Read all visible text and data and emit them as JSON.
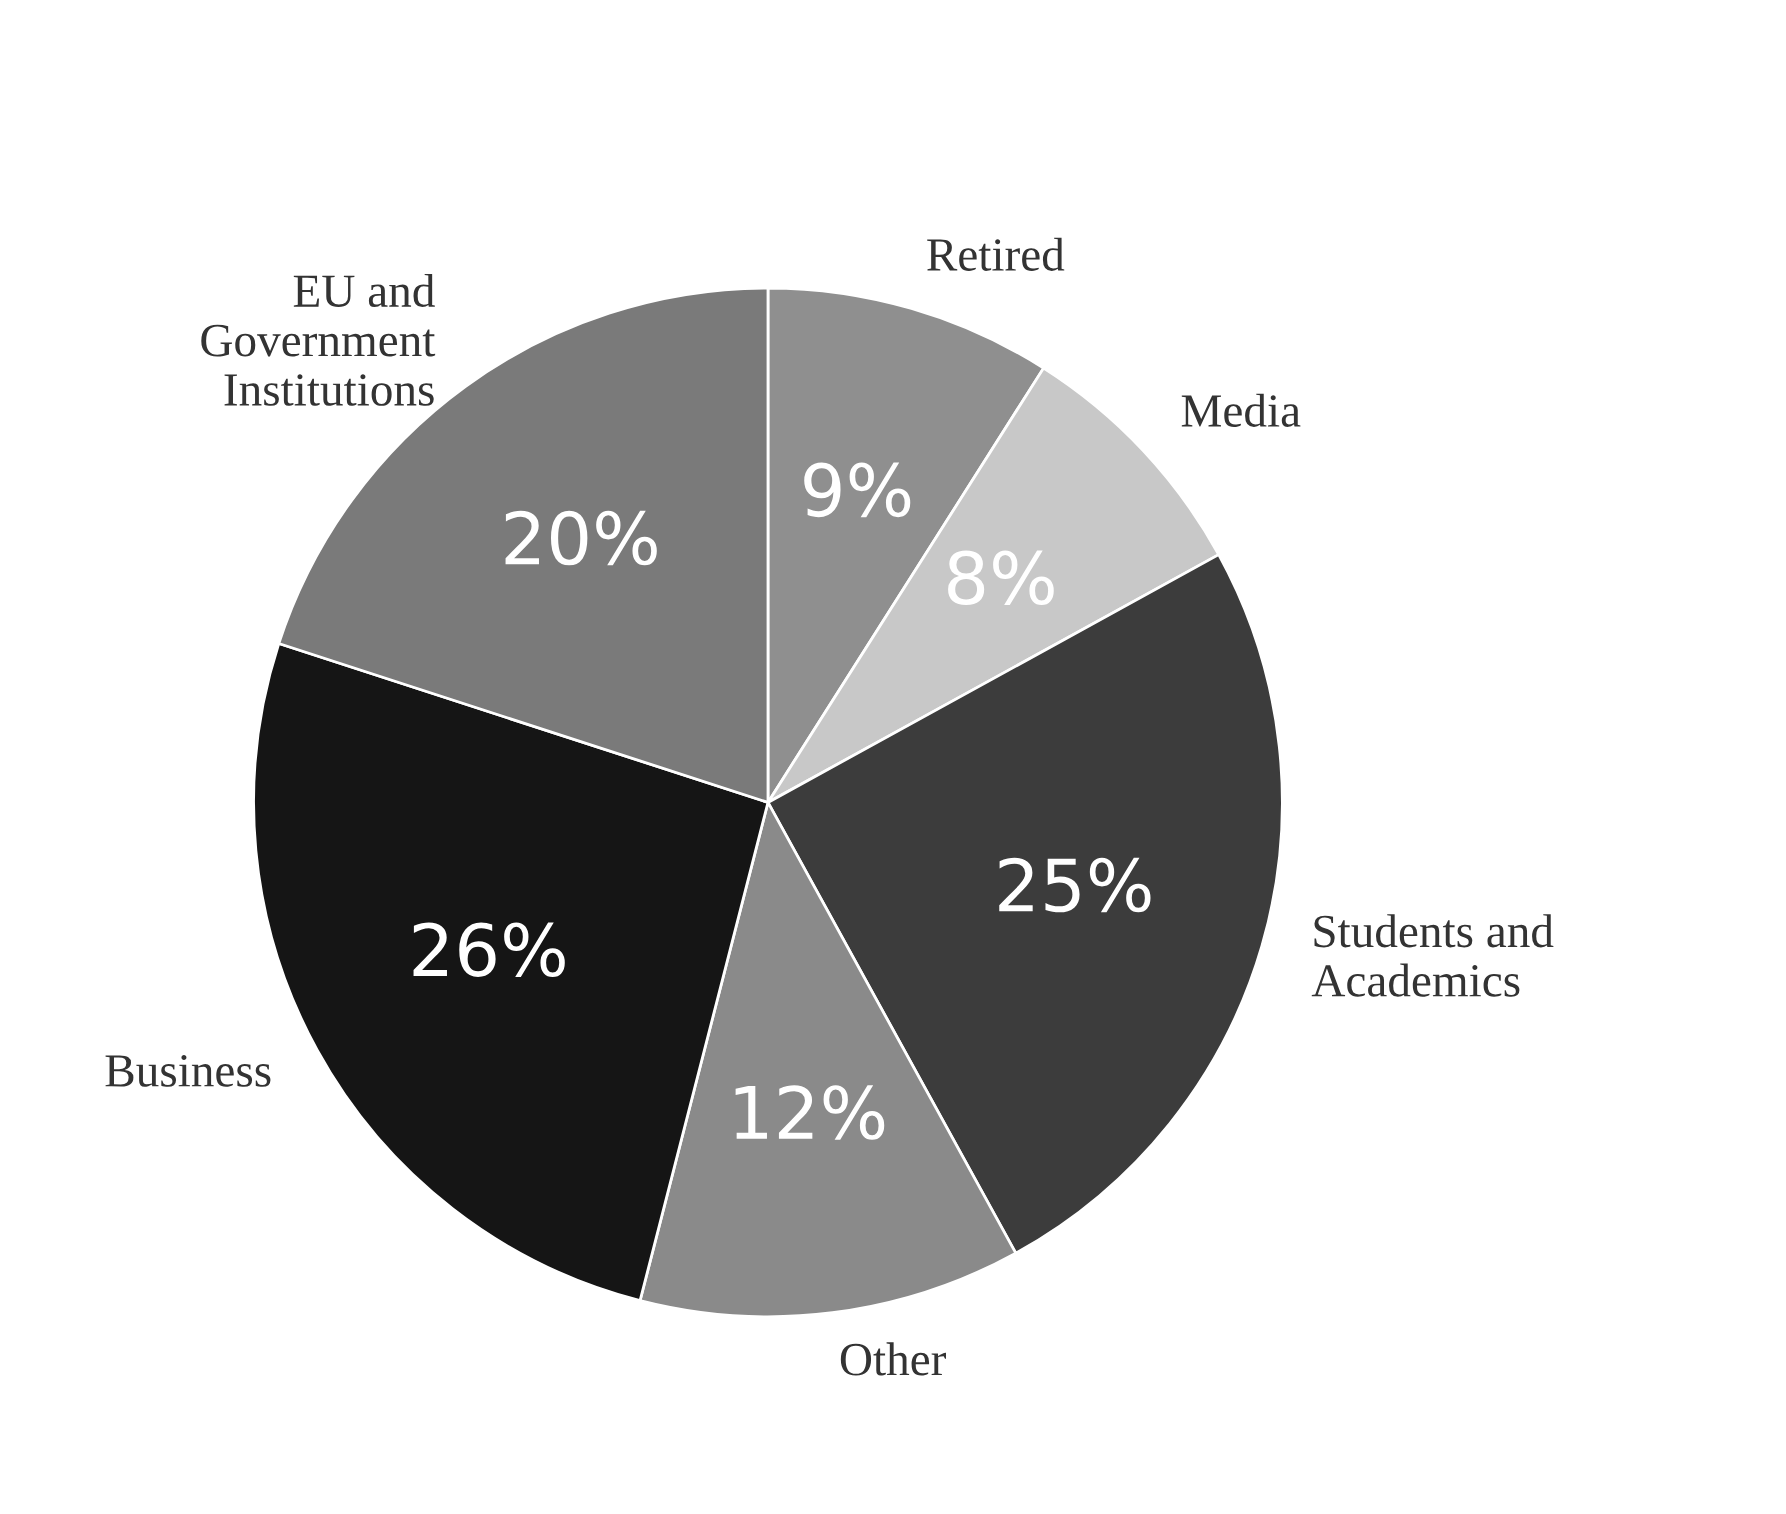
{
  "chart_data": {
    "type": "pie",
    "categories": [
      "Retired",
      "Media",
      "Students and\nAcademics",
      "Other",
      "Business",
      "EU and\nGovernment\nInstitutions"
    ],
    "values": [
      9,
      8,
      25,
      12,
      26,
      20
    ],
    "value_labels": [
      "9%",
      "8%",
      "25%",
      "12%",
      "26%",
      "20%"
    ],
    "colors": [
      "#8f8f8f",
      "#c8c8c8",
      "#3c3c3c",
      "#8a8a8a",
      "#151515",
      "#7a7a7a"
    ]
  }
}
